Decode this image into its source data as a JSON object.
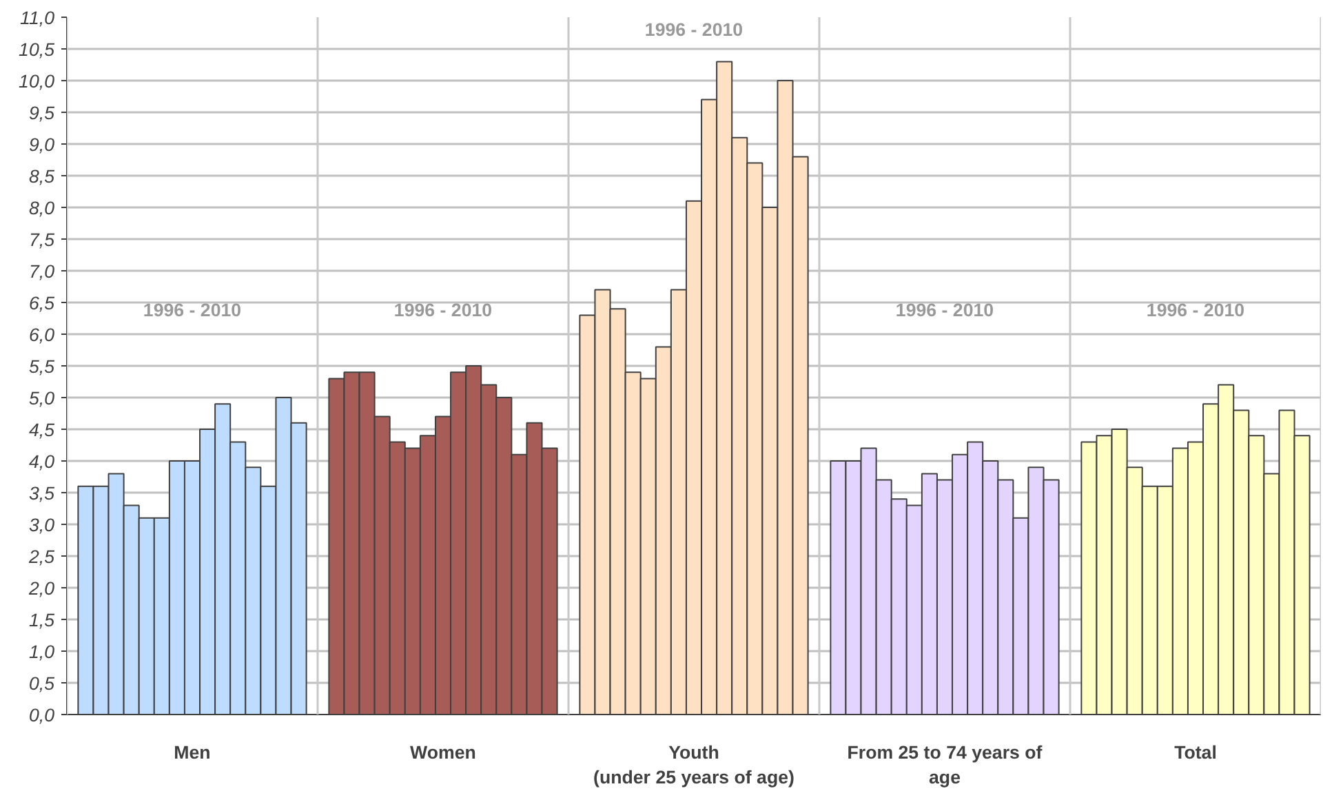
{
  "chart_data": {
    "type": "bar",
    "categories": [
      "Men",
      "Women",
      "Youth\n(under 25 years of age)",
      "From 25 to 74 years of\nage",
      "Total"
    ],
    "series": [
      {
        "colors": [
          "#bddcff",
          "#a85c58",
          "#fee0c2",
          "#e2d4ff",
          "#ffffc4"
        ],
        "values": [
          3.6,
          5.3,
          6.3,
          4.0,
          4.3
        ]
      },
      {
        "colors": [
          "#bddcff",
          "#a85c58",
          "#fee0c2",
          "#e2d4ff",
          "#ffffc4"
        ],
        "values": [
          3.6,
          5.4,
          6.7,
          4.0,
          4.4
        ]
      },
      {
        "colors": [
          "#bddcff",
          "#a85c58",
          "#fee0c2",
          "#e2d4ff",
          "#ffffc4"
        ],
        "values": [
          3.8,
          5.4,
          6.4,
          4.2,
          4.5
        ]
      },
      {
        "colors": [
          "#bddcff",
          "#a85c58",
          "#fee0c2",
          "#e2d4ff",
          "#ffffc4"
        ],
        "values": [
          3.3,
          4.7,
          5.4,
          3.7,
          3.9
        ]
      },
      {
        "colors": [
          "#bddcff",
          "#a85c58",
          "#fee0c2",
          "#e2d4ff",
          "#ffffc4"
        ],
        "values": [
          3.1,
          4.3,
          5.3,
          3.4,
          3.6
        ]
      },
      {
        "colors": [
          "#bddcff",
          "#a85c58",
          "#fee0c2",
          "#e2d4ff",
          "#ffffc4"
        ],
        "values": [
          3.1,
          4.2,
          5.8,
          3.3,
          3.6
        ]
      },
      {
        "colors": [
          "#bddcff",
          "#a85c58",
          "#fee0c2",
          "#e2d4ff",
          "#ffffc4"
        ],
        "values": [
          4.0,
          4.4,
          6.7,
          3.8,
          4.2
        ]
      },
      {
        "colors": [
          "#bddcff",
          "#a85c58",
          "#fee0c2",
          "#e2d4ff",
          "#ffffc4"
        ],
        "values": [
          4.0,
          4.7,
          8.1,
          3.7,
          4.3
        ]
      },
      {
        "colors": [
          "#bddcff",
          "#a85c58",
          "#fee0c2",
          "#e2d4ff",
          "#ffffc4"
        ],
        "values": [
          4.5,
          5.4,
          9.7,
          4.1,
          4.9
        ]
      },
      {
        "colors": [
          "#bddcff",
          "#a85c58",
          "#fee0c2",
          "#e2d4ff",
          "#ffffc4"
        ],
        "values": [
          4.9,
          5.5,
          10.3,
          4.3,
          5.2
        ]
      },
      {
        "colors": [
          "#bddcff",
          "#a85c58",
          "#fee0c2",
          "#e2d4ff",
          "#ffffc4"
        ],
        "values": [
          4.3,
          5.2,
          9.1,
          4.0,
          4.8
        ]
      },
      {
        "colors": [
          "#bddcff",
          "#a85c58",
          "#fee0c2",
          "#e2d4ff",
          "#ffffc4"
        ],
        "values": [
          3.9,
          5.0,
          8.7,
          3.7,
          4.4
        ]
      },
      {
        "colors": [
          "#bddcff",
          "#a85c58",
          "#fee0c2",
          "#e2d4ff",
          "#ffffc4"
        ],
        "values": [
          3.6,
          4.1,
          8.0,
          3.1,
          3.8
        ]
      },
      {
        "colors": [
          "#bddcff",
          "#a85c58",
          "#fee0c2",
          "#e2d4ff",
          "#ffffc4"
        ],
        "values": [
          5.0,
          4.6,
          10.0,
          3.9,
          4.8
        ]
      },
      {
        "colors": [
          "#bddcff",
          "#a85c58",
          "#fee0c2",
          "#e2d4ff",
          "#ffffc4"
        ],
        "values": [
          4.6,
          4.2,
          8.8,
          3.7,
          4.4
        ]
      }
    ],
    "annotations": [
      "1996 - 2010",
      "1996 - 2010",
      "1996 - 2010",
      "1996 - 2010",
      "1996 - 2010"
    ],
    "ylim": [
      0,
      11
    ],
    "yticks": [
      {
        "value": 0,
        "label": "0,0"
      },
      {
        "value": 0.5,
        "label": "0,5"
      },
      {
        "value": 1,
        "label": "1,0"
      },
      {
        "value": 1.5,
        "label": "1,5"
      },
      {
        "value": 2,
        "label": "2,0"
      },
      {
        "value": 2.5,
        "label": "2,5"
      },
      {
        "value": 3,
        "label": "3,0"
      },
      {
        "value": 3.5,
        "label": "3,5"
      },
      {
        "value": 4,
        "label": "4,0"
      },
      {
        "value": 4.5,
        "label": "4,5"
      },
      {
        "value": 5,
        "label": "5,0"
      },
      {
        "value": 5.5,
        "label": "5,5"
      },
      {
        "value": 6,
        "label": "6,0"
      },
      {
        "value": 6.5,
        "label": "6,5"
      },
      {
        "value": 7,
        "label": "7,0"
      },
      {
        "value": 7.5,
        "label": "7,5"
      },
      {
        "value": 8,
        "label": "8,0"
      },
      {
        "value": 8.5,
        "label": "8,5"
      },
      {
        "value": 9,
        "label": "9,0"
      },
      {
        "value": 9.5,
        "label": "9,5"
      },
      {
        "value": 10,
        "label": "10,0"
      },
      {
        "value": 10.5,
        "label": "10,5"
      },
      {
        "value": 11,
        "label": "11,0"
      }
    ],
    "grid": true
  }
}
